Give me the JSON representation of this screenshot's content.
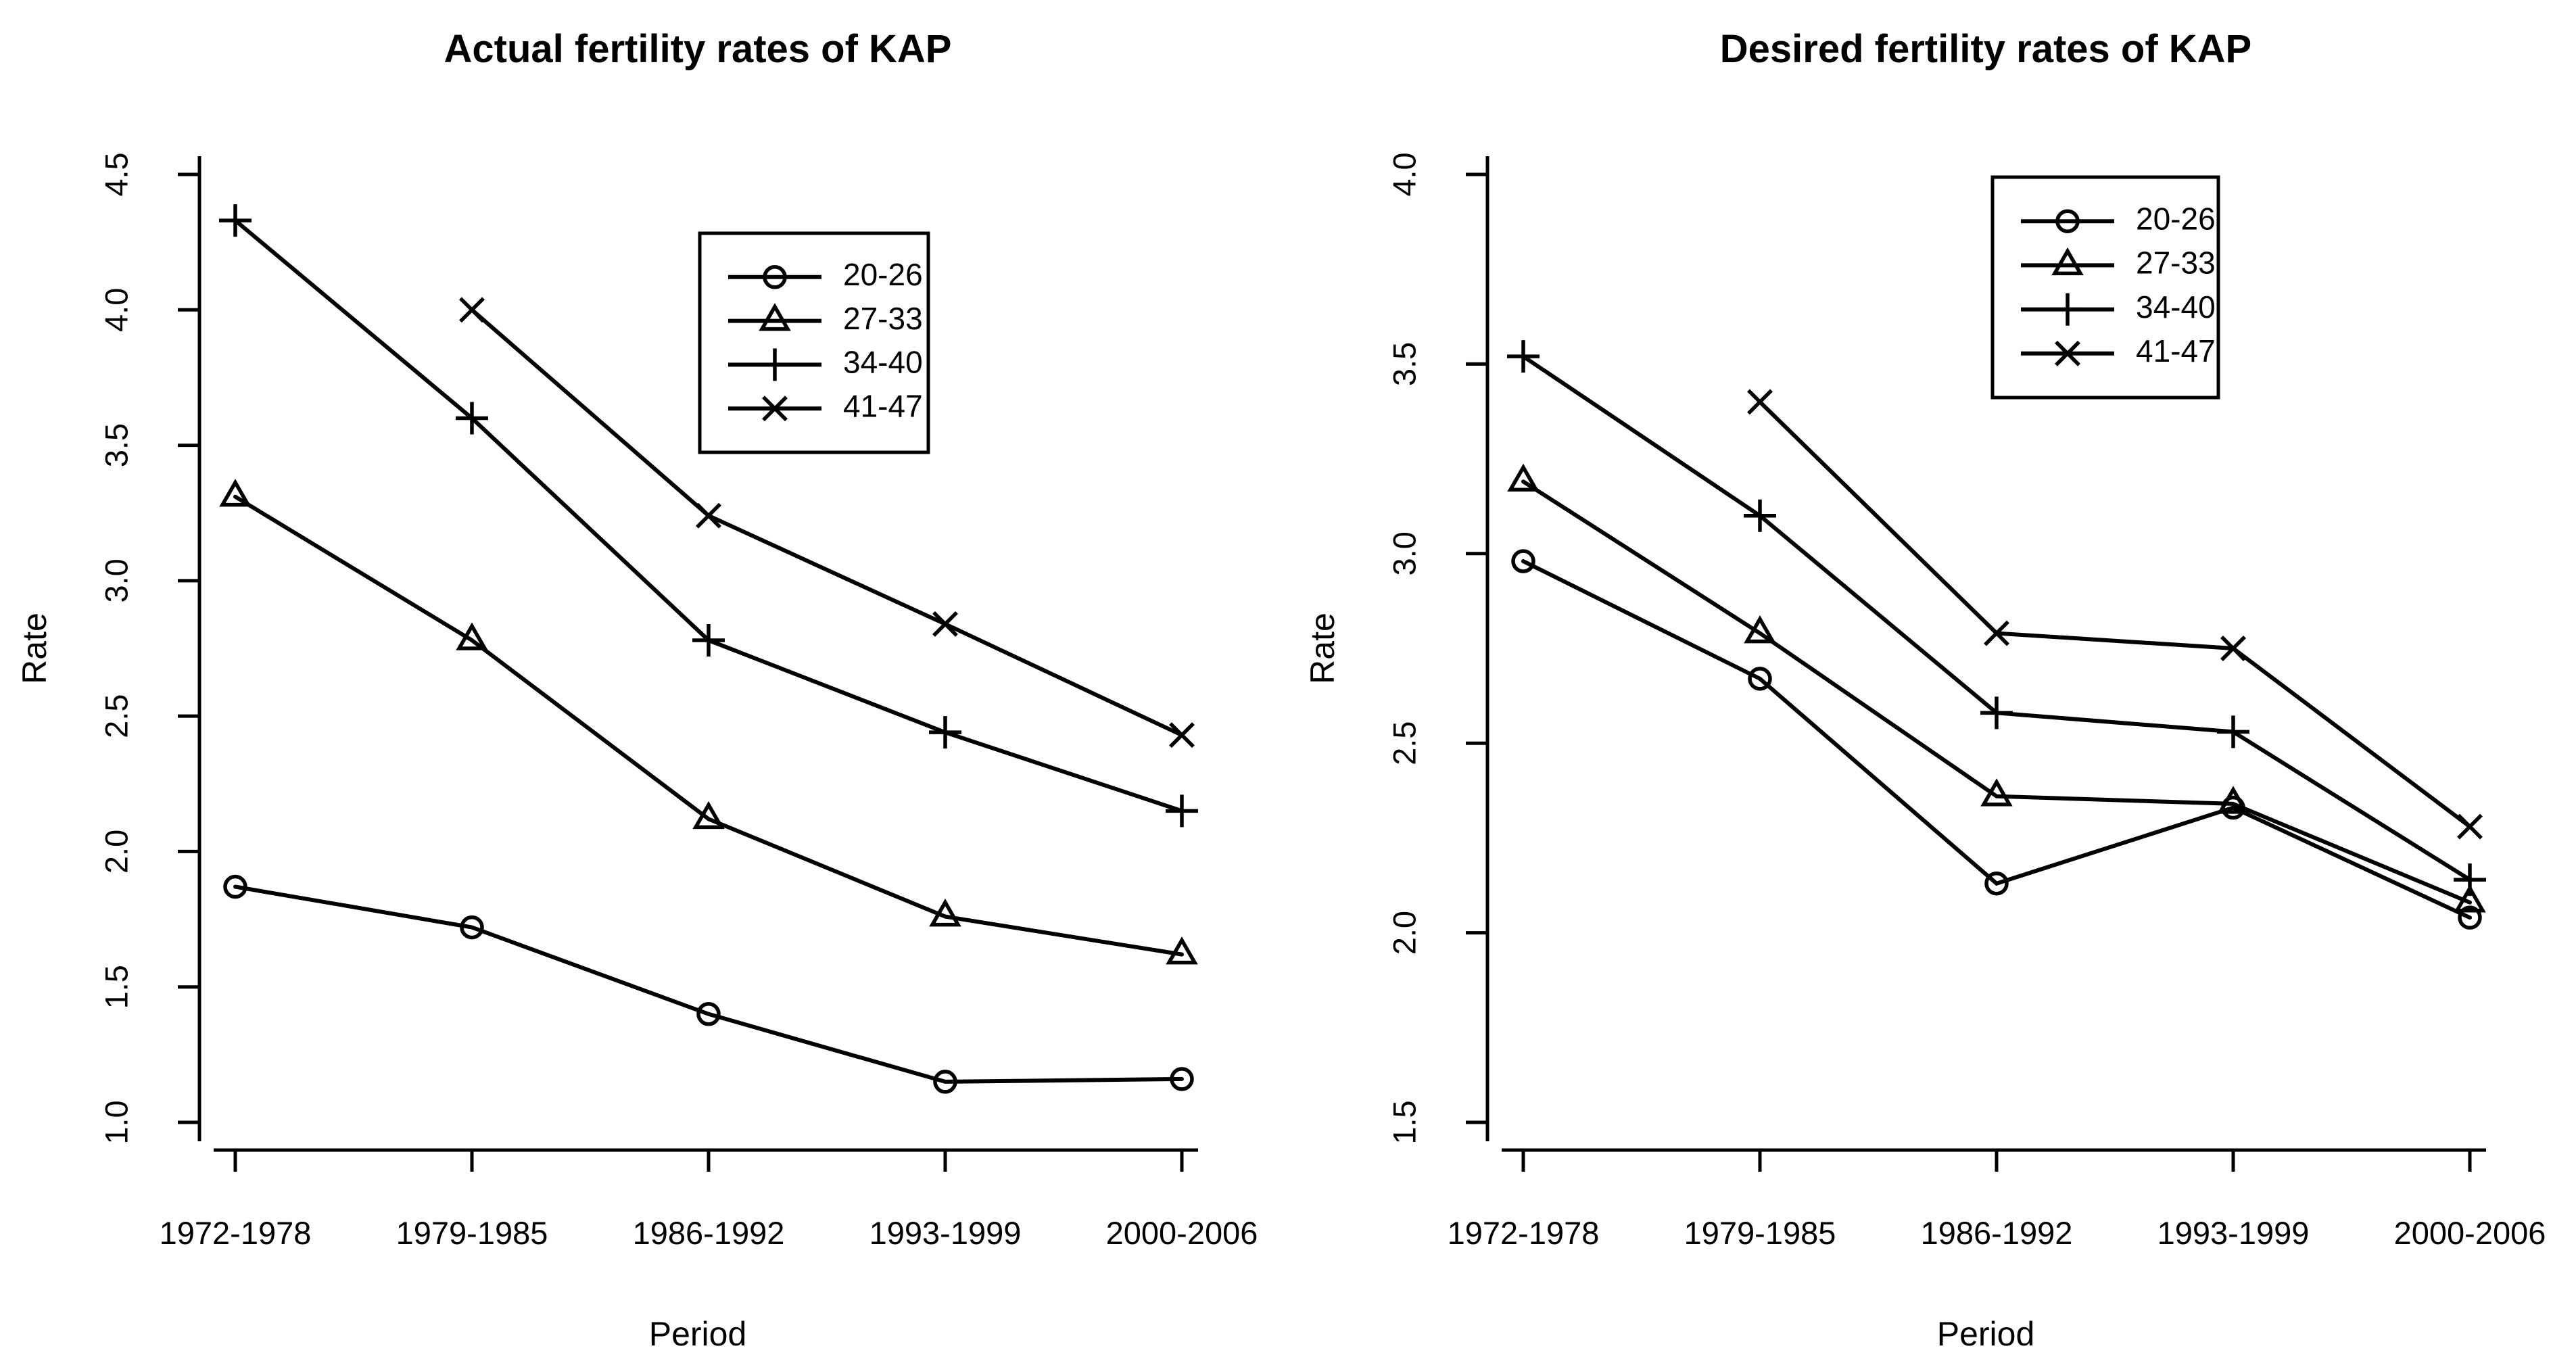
{
  "page": {
    "background_color": "#ffffff",
    "foreground_color": "#000000"
  },
  "chart_data": [
    {
      "type": "line",
      "title": "Actual fertility rates of KAP",
      "xlabel": "Period",
      "ylabel": "Rate",
      "categories": [
        "1972-1978",
        "1979-1985",
        "1986-1992",
        "1993-1999",
        "2000-2006"
      ],
      "ylim": [
        1.0,
        4.5
      ],
      "yticks": [
        "1.0",
        "1.5",
        "2.0",
        "2.5",
        "3.0",
        "3.5",
        "4.0",
        "4.5"
      ],
      "grid": false,
      "line_color": "#000000",
      "legend_position": "top-right-inset",
      "series": [
        {
          "name": "20-26",
          "marker": "circle",
          "values": [
            1.87,
            1.72,
            1.4,
            1.15,
            1.16
          ]
        },
        {
          "name": "27-33",
          "marker": "triangle",
          "values": [
            3.31,
            2.78,
            2.12,
            1.76,
            1.62
          ]
        },
        {
          "name": "34-40",
          "marker": "plus",
          "values": [
            4.33,
            3.6,
            2.78,
            2.44,
            2.15
          ]
        },
        {
          "name": "41-47",
          "marker": "cross",
          "values": [
            null,
            4.0,
            3.24,
            2.84,
            2.43
          ]
        }
      ]
    },
    {
      "type": "line",
      "title": "Desired fertility rates of KAP",
      "xlabel": "Period",
      "ylabel": "Rate",
      "categories": [
        "1972-1978",
        "1979-1985",
        "1986-1992",
        "1993-1999",
        "2000-2006"
      ],
      "ylim": [
        1.5,
        4.0
      ],
      "yticks": [
        "1.5",
        "2.0",
        "2.5",
        "3.0",
        "3.5",
        "4.0"
      ],
      "grid": false,
      "line_color": "#000000",
      "legend_position": "top-right-inset",
      "series": [
        {
          "name": "20-26",
          "marker": "circle",
          "values": [
            2.98,
            2.67,
            2.13,
            2.33,
            2.04
          ]
        },
        {
          "name": "27-33",
          "marker": "triangle",
          "values": [
            3.19,
            2.79,
            2.36,
            2.34,
            2.08
          ]
        },
        {
          "name": "34-40",
          "marker": "plus",
          "values": [
            3.52,
            3.1,
            2.58,
            2.53,
            2.14
          ]
        },
        {
          "name": "41-47",
          "marker": "cross",
          "values": [
            null,
            3.4,
            2.79,
            2.75,
            2.28
          ]
        }
      ]
    }
  ]
}
